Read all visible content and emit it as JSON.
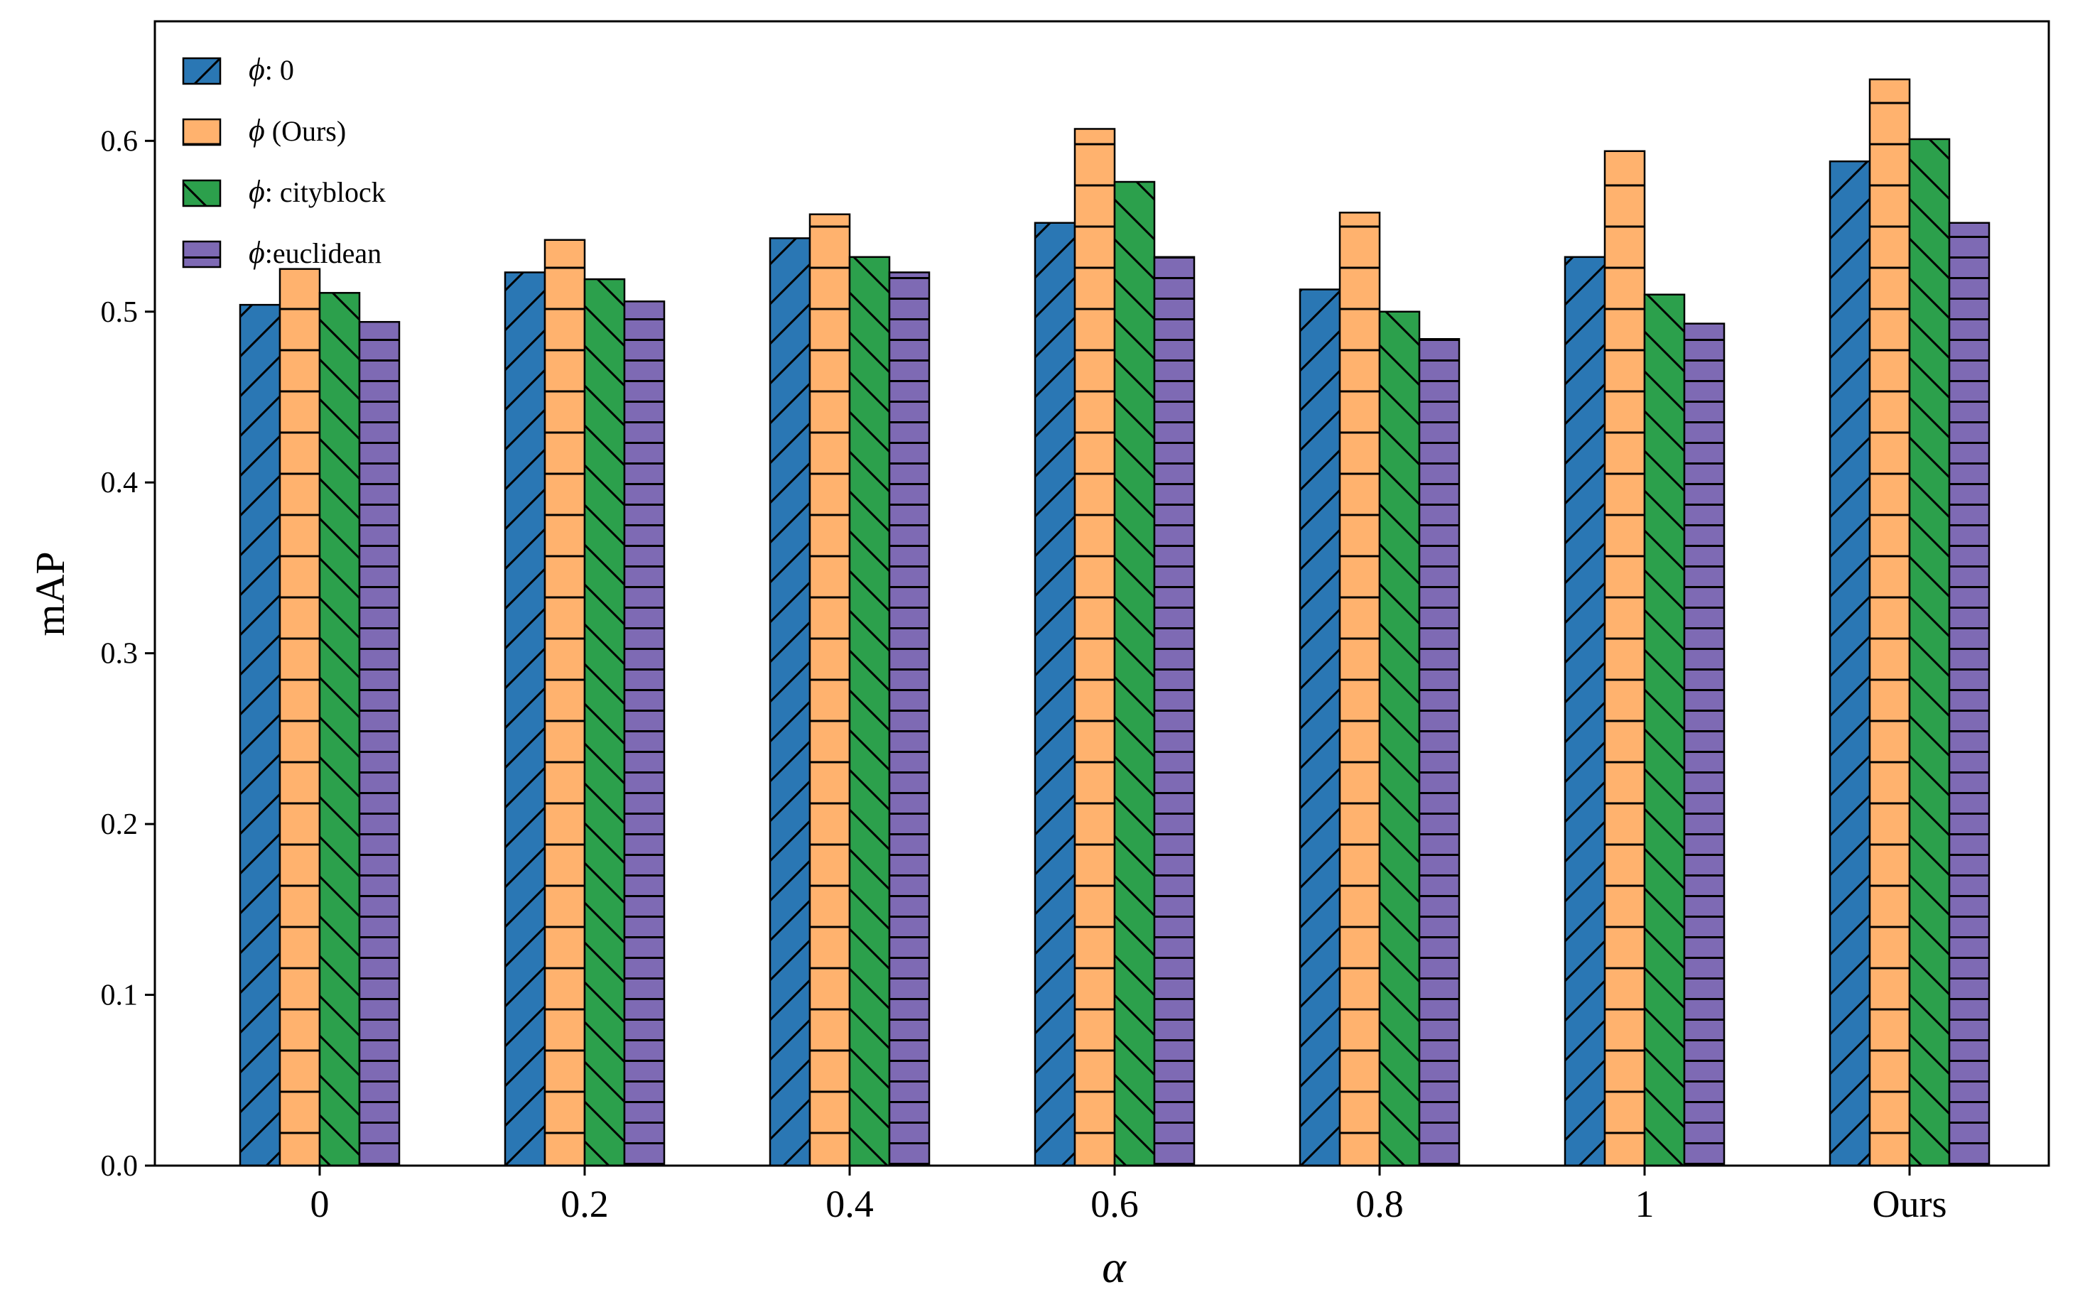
{
  "chart_data": {
    "type": "bar",
    "title": "",
    "xlabel": "α",
    "ylabel": "mAP",
    "categories": [
      "0",
      "0.2",
      "0.4",
      "0.6",
      "0.8",
      "1",
      "Ours"
    ],
    "ylim": [
      0,
      0.67
    ],
    "yticks": [
      "0.0",
      "0.1",
      "0.2",
      "0.3",
      "0.4",
      "0.5",
      "0.6"
    ],
    "legend_position": "top-left",
    "series": [
      {
        "name": "ϕ: 0",
        "symbol": "ϕ",
        "suffix": ": 0",
        "color": "#2a77b4",
        "hatch": "diagonal",
        "values": [
          0.504,
          0.523,
          0.543,
          0.552,
          0.513,
          0.532,
          0.588
        ]
      },
      {
        "name": "ϕ (Ours)",
        "symbol": "ϕ",
        "suffix": " (Ours)",
        "color": "#ffb26e",
        "hatch": "horizontal",
        "values": [
          0.525,
          0.542,
          0.557,
          0.607,
          0.558,
          0.594,
          0.636
        ]
      },
      {
        "name": "ϕ: cityblock",
        "symbol": "ϕ",
        "suffix": ": cityblock",
        "color": "#2ca04c",
        "hatch": "backdiagonal",
        "values": [
          0.511,
          0.519,
          0.532,
          0.576,
          0.5,
          0.51,
          0.601
        ]
      },
      {
        "name": "ϕ:euclidean",
        "symbol": "ϕ",
        "suffix": ":euclidean",
        "color": "#7e6ab4",
        "hatch": "dense-horizontal",
        "values": [
          0.494,
          0.506,
          0.523,
          0.532,
          0.484,
          0.493,
          0.552
        ]
      }
    ]
  }
}
